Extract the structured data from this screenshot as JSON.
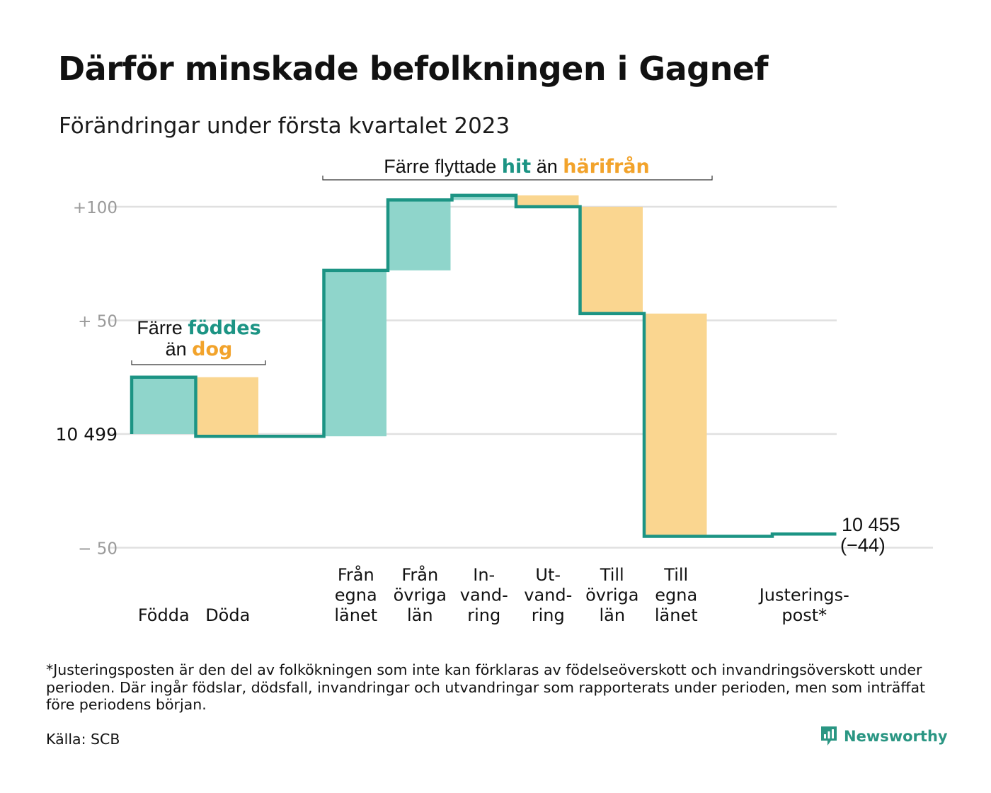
{
  "title": "Därför minskade befolkningen i Gagnef",
  "subtitle": "Förändringar under första kvartalet 2023",
  "annotations": {
    "births_deaths": {
      "line1_prefix": "Färre ",
      "line1_highlight": "föddes",
      "line2_prefix": "än ",
      "line2_highlight": "dog"
    },
    "migration": {
      "prefix": "Färre flyttade ",
      "highlight1": "hit",
      "middle": " än ",
      "highlight2": "härifrån"
    }
  },
  "end_label": {
    "value": "10 455",
    "change": "(−44)"
  },
  "footnote": "*Justeringsposten är den del av folkökningen som inte kan förklaras av födelseöverskott och invandringsöverskott under perioden. Där ingår födslar, dödsfall, invandringar och utvandringar som rapporterats under perioden, men som inträffat före periodens början.",
  "source": "Källa: SCB",
  "brand": {
    "name": "Newsworthy",
    "icon": "newsworthy-logo-icon"
  },
  "colors": {
    "increase": "#8fd5cb",
    "decrease": "#fad690",
    "line": "#1c9484",
    "highlight_teal": "#1c9484",
    "highlight_orange": "#f2a32b",
    "grid": "#e0e0e0",
    "tick": "#9a9a9a"
  },
  "chart_data": {
    "type": "waterfall",
    "baseline_value": 10499,
    "final_value": 10455,
    "total_change": -44,
    "y_ticks": [
      {
        "value": 100,
        "label": "+100"
      },
      {
        "value": 50,
        "label": "+ 50"
      },
      {
        "value": 0,
        "label": "10 499"
      },
      {
        "value": -50,
        "label": "− 50"
      }
    ],
    "ylim": [
      -50,
      100
    ],
    "steps": [
      {
        "label": [
          "Födda"
        ],
        "change": 25,
        "kind": "increase"
      },
      {
        "label": [
          "Döda"
        ],
        "change": -26,
        "kind": "decrease"
      },
      {
        "label": [],
        "change": 0,
        "kind": "none"
      },
      {
        "label": [
          "Från",
          "egna",
          "länet"
        ],
        "change": 73,
        "kind": "increase"
      },
      {
        "label": [
          "Från",
          "övriga",
          "län"
        ],
        "change": 31,
        "kind": "increase"
      },
      {
        "label": [
          "In-",
          "vand-",
          "ring"
        ],
        "change": 2,
        "kind": "increase"
      },
      {
        "label": [
          "Ut-",
          "vand-",
          "ring"
        ],
        "change": -5,
        "kind": "decrease"
      },
      {
        "label": [
          "Till",
          "övriga",
          "län"
        ],
        "change": -47,
        "kind": "decrease"
      },
      {
        "label": [
          "Till",
          "egna",
          "länet"
        ],
        "change": -98,
        "kind": "decrease"
      },
      {
        "label": [],
        "change": 0,
        "kind": "none"
      },
      {
        "label": [
          "Justerings-",
          "post*"
        ],
        "change": 1,
        "kind": "adjustment"
      }
    ]
  }
}
